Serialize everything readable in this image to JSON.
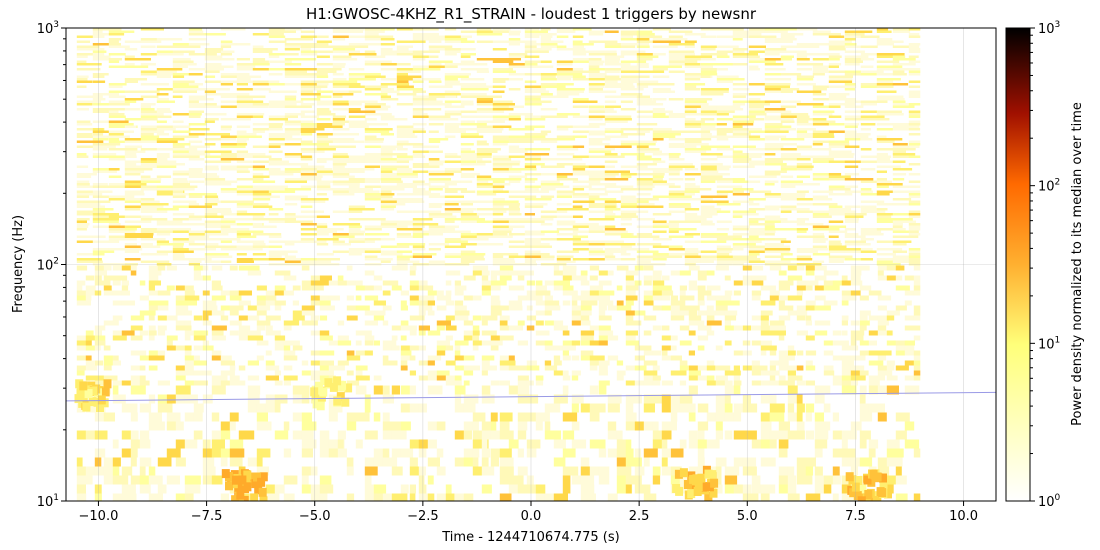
{
  "chart_data": {
    "type": "heatmap",
    "title": "H1:GWOSC-4KHZ_R1_STRAIN - loudest 1 triggers by newsnr",
    "xlabel": "Time - 1244710674.775 (s)",
    "ylabel": "Frequency (Hz)",
    "xlim": [
      -10.75,
      10.75
    ],
    "ylim": [
      10,
      1000
    ],
    "yscale": "log",
    "x_ticks": [
      -10.0,
      -7.5,
      -5.0,
      -2.5,
      0.0,
      2.5,
      5.0,
      7.5,
      10.0
    ],
    "x_tick_labels": [
      "−10.0",
      "−7.5",
      "−5.0",
      "−2.5",
      "0.0",
      "2.5",
      "5.0",
      "7.5",
      "10.0"
    ],
    "y_ticks": [
      10,
      100,
      1000
    ],
    "y_tick_labels": [
      "10",
      "10",
      "10"
    ],
    "y_tick_exponents": [
      "1",
      "2",
      "3"
    ],
    "grid": true,
    "data_extent": {
      "time": [
        -10.5,
        9.0
      ],
      "frequency": [
        10,
        1000
      ]
    },
    "hotspots": [
      {
        "time": -6.6,
        "frequency": 11.5,
        "level": 6
      },
      {
        "time": 3.8,
        "frequency": 12,
        "level": 5
      },
      {
        "time": 7.8,
        "frequency": 11.5,
        "level": 5
      },
      {
        "time": -10.0,
        "frequency": 28,
        "level": 4
      },
      {
        "time": -4.6,
        "frequency": 29,
        "level": 3
      }
    ],
    "trigger_track": {
      "color": "#9a9ae6",
      "points": [
        {
          "time": -10.75,
          "frequency": 26.5
        },
        {
          "time": 10.75,
          "frequency": 28.8
        }
      ]
    },
    "colorbar": {
      "label": "Power density normalized to its median over time",
      "scale": "log",
      "range": [
        1,
        1000
      ],
      "ticks": [
        1,
        10,
        100,
        1000
      ],
      "tick_labels": [
        "10",
        "10",
        "10",
        "10"
      ],
      "tick_exponents": [
        "0",
        "1",
        "2",
        "3"
      ],
      "colormap": "afmhot_r"
    }
  }
}
